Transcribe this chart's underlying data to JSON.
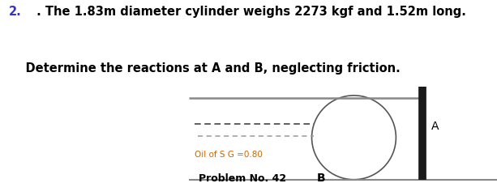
{
  "title_number": "2.",
  "title_line1": " . The 1.83m diameter cylinder weighs 2273 kgf and 1.52m long.",
  "title_line2": "    Determine the reactions at A and B, neglecting friction.",
  "oil_label": "Oil of S G =0.80",
  "problem_label": "Problem No. 42",
  "point_A": "A",
  "point_B": "B",
  "bg_color": "#ffffff",
  "text_color": "#000000",
  "title_number_color": "#3333cc",
  "oil_label_color": "#cc6600",
  "problem_label_color": "#000000",
  "point_B_color": "#000000",
  "wall_color": "#1a1a1a",
  "line_color": "#888888",
  "dash_color_dark": "#333333",
  "dash_color_light": "#999999",
  "circle_color": "#555555"
}
